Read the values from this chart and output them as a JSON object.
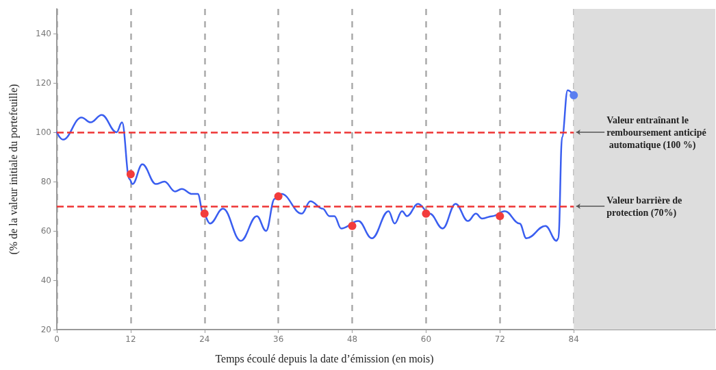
{
  "chart_data": {
    "type": "line",
    "xlabel": "Temps écoulé depuis la date d’émission (en mois)",
    "ylabel": "(% de la valeur initiale du portefeuille)",
    "xlim": [
      0,
      107
    ],
    "xticks": [
      0,
      12,
      24,
      36,
      48,
      60,
      72,
      84
    ],
    "ylim": [
      20,
      150
    ],
    "yticks": [
      20,
      40,
      60,
      80,
      100,
      120,
      140
    ],
    "grid": "x",
    "series": [
      {
        "color": "#3a5ef0",
        "marker": "none",
        "line_style": "solid",
        "x": [
          0,
          1,
          4,
          5.5,
          7.3,
          9.7,
          10.6,
          11.8,
          12.3,
          13.9,
          16.1,
          17.5,
          19.2,
          20.3,
          22,
          22.9,
          23.8,
          24.9,
          27,
          29.9,
          32.5,
          34,
          35.4,
          36.5,
          39.8,
          41.2,
          43.2,
          44.3,
          45.1,
          46.2,
          49,
          51.2,
          53.9,
          54.9,
          56.1,
          56.9,
          58.7,
          60.6,
          62.7,
          64.8,
          66.8,
          68.1,
          69.1,
          70.8,
          72.8,
          75.2,
          76.3,
          79.4,
          81.2,
          81.5,
          82.1,
          83,
          84
        ],
        "values": [
          100,
          97,
          106,
          104,
          107,
          100,
          104,
          81,
          79,
          87,
          79,
          80,
          76,
          77,
          75,
          75,
          67,
          63,
          69,
          56,
          66,
          60,
          73,
          75,
          67,
          72,
          69,
          66,
          66,
          61,
          64,
          57,
          68,
          63,
          68,
          66,
          71,
          67,
          61,
          71,
          64,
          67,
          65,
          66,
          68,
          63,
          57,
          62,
          56,
          57,
          98,
          117,
          115
        ]
      },
      {
        "type": "scatter",
        "color": "#f23c3c",
        "marker": "circle",
        "x": [
          12,
          24,
          36,
          48,
          60,
          72
        ],
        "values": [
          83,
          67,
          74,
          62,
          67,
          66
        ]
      },
      {
        "type": "scatter",
        "color": "#5a7ef0",
        "marker": "circle",
        "x": [
          84
        ],
        "values": [
          115
        ]
      }
    ],
    "ref_lines": [
      {
        "axis": "y",
        "value": 100,
        "label": "Valeur entraînant le remboursement anticipé automatique (100 %)",
        "color": "#ee3333",
        "line_style": "dashed"
      },
      {
        "axis": "y",
        "value": 70,
        "label": "Valeur barrière de protection (70%)",
        "color": "#ee3333",
        "line_style": "dashed"
      }
    ],
    "bands": [
      {
        "axis": "x",
        "from": 84,
        "to": 107,
        "color": "#dddddd"
      }
    ]
  }
}
